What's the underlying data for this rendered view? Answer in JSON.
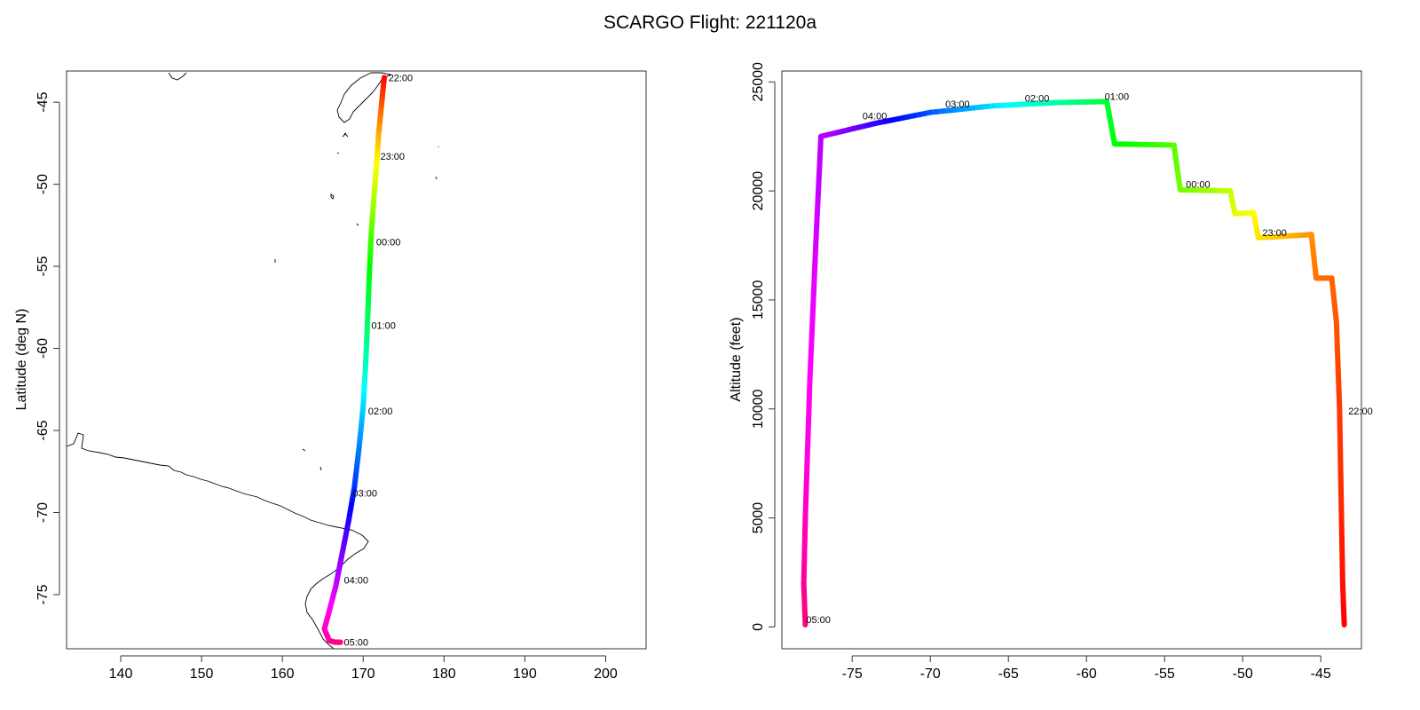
{
  "title": "SCARGO Flight: 221120a",
  "chart_data": [
    {
      "type": "line",
      "ylabel": "Latitude (deg N)",
      "xlabel": "",
      "xlim": [
        133.3,
        205
      ],
      "ylim": [
        -78.3,
        -43.1
      ],
      "xticks": [
        140,
        150,
        160,
        170,
        180,
        190,
        200
      ],
      "yticks": [
        -45,
        -50,
        -55,
        -60,
        -65,
        -70,
        -75
      ],
      "grid": false,
      "color_scale": "time (rainbow: red - yellow - green - cyan - blue - magenta - red)",
      "track": [
        {
          "x": 172.6,
          "y": -43.5,
          "t": 0.0
        },
        {
          "x": 172.3,
          "y": -45.0,
          "t": 0.05
        },
        {
          "x": 171.9,
          "y": -47.0,
          "t": 0.12
        },
        {
          "x": 171.7,
          "y": -48.5,
          "t": 0.17
        },
        {
          "x": 171.3,
          "y": -51.0,
          "t": 0.24
        },
        {
          "x": 171.0,
          "y": -53.0,
          "t": 0.3
        },
        {
          "x": 170.8,
          "y": -55.0,
          "t": 0.36
        },
        {
          "x": 170.5,
          "y": -58.8,
          "t": 0.44
        },
        {
          "x": 170.3,
          "y": -61.0,
          "t": 0.5
        },
        {
          "x": 170.0,
          "y": -63.5,
          "t": 0.57
        },
        {
          "x": 169.5,
          "y": -66.0,
          "t": 0.63
        },
        {
          "x": 168.9,
          "y": -68.5,
          "t": 0.69
        },
        {
          "x": 168.2,
          "y": -70.5,
          "t": 0.75
        },
        {
          "x": 167.4,
          "y": -72.5,
          "t": 0.81
        },
        {
          "x": 166.6,
          "y": -74.5,
          "t": 0.87
        },
        {
          "x": 165.8,
          "y": -76.0,
          "t": 0.92
        },
        {
          "x": 165.2,
          "y": -77.1,
          "t": 0.95
        },
        {
          "x": 165.8,
          "y": -77.8,
          "t": 0.97
        },
        {
          "x": 166.5,
          "y": -77.9,
          "t": 0.99
        },
        {
          "x": 167.2,
          "y": -77.9,
          "t": 1.0
        }
      ],
      "time_labels": [
        {
          "text": "22:00",
          "x": 173.0,
          "y": -43.5
        },
        {
          "text": "23:00",
          "x": 172.0,
          "y": -48.3
        },
        {
          "text": "00:00",
          "x": 171.5,
          "y": -53.5
        },
        {
          "text": "01:00",
          "x": 170.9,
          "y": -58.6
        },
        {
          "text": "02:00",
          "x": 170.5,
          "y": -63.8
        },
        {
          "text": "03:00",
          "x": 168.6,
          "y": -68.8
        },
        {
          "text": "04:00",
          "x": 167.5,
          "y": -74.1
        },
        {
          "text": "05:00",
          "x": 167.5,
          "y": -77.9
        }
      ]
    },
    {
      "type": "line",
      "ylabel": "Altitude (feet)",
      "xlabel": "",
      "xlim": [
        -79.5,
        -42.4
      ],
      "ylim": [
        -1000,
        25500
      ],
      "xticks": [
        -75,
        -70,
        -65,
        -60,
        -55,
        -50,
        -45
      ],
      "yticks": [
        0,
        5000,
        10000,
        15000,
        20000,
        25000
      ],
      "grid": false,
      "track": [
        {
          "x": -43.5,
          "y": 100,
          "t": 0.0
        },
        {
          "x": -43.6,
          "y": 2000,
          "t": 0.01
        },
        {
          "x": -43.7,
          "y": 6000,
          "t": 0.03
        },
        {
          "x": -43.8,
          "y": 10000,
          "t": 0.04
        },
        {
          "x": -44.0,
          "y": 14000,
          "t": 0.06
        },
        {
          "x": -44.3,
          "y": 16000,
          "t": 0.07
        },
        {
          "x": -45.3,
          "y": 16000,
          "t": 0.08
        },
        {
          "x": -45.6,
          "y": 18000,
          "t": 0.1
        },
        {
          "x": -49.0,
          "y": 17850,
          "t": 0.16
        },
        {
          "x": -49.3,
          "y": 19000,
          "t": 0.18
        },
        {
          "x": -50.5,
          "y": 18950,
          "t": 0.2
        },
        {
          "x": -50.8,
          "y": 20000,
          "t": 0.22
        },
        {
          "x": -54.0,
          "y": 20050,
          "t": 0.28
        },
        {
          "x": -54.4,
          "y": 22100,
          "t": 0.3
        },
        {
          "x": -58.2,
          "y": 22150,
          "t": 0.37
        },
        {
          "x": -58.7,
          "y": 24100,
          "t": 0.4
        },
        {
          "x": -62.0,
          "y": 24050,
          "t": 0.48
        },
        {
          "x": -66.0,
          "y": 23900,
          "t": 0.56
        },
        {
          "x": -70.0,
          "y": 23600,
          "t": 0.66
        },
        {
          "x": -73.5,
          "y": 23100,
          "t": 0.76
        },
        {
          "x": -77.0,
          "y": 22500,
          "t": 0.86
        },
        {
          "x": -77.3,
          "y": 18000,
          "t": 0.88
        },
        {
          "x": -77.7,
          "y": 11500,
          "t": 0.91
        },
        {
          "x": -78.0,
          "y": 5000,
          "t": 0.95
        },
        {
          "x": -78.1,
          "y": 2000,
          "t": 0.98
        },
        {
          "x": -78.0,
          "y": 100,
          "t": 1.0
        }
      ],
      "time_labels": [
        {
          "text": "01:00",
          "x": -58.9,
          "y": 24350
        },
        {
          "text": "02:00",
          "x": -64.0,
          "y": 24250
        },
        {
          "text": "03:00",
          "x": -69.1,
          "y": 24000
        },
        {
          "text": "04:00",
          "x": -74.4,
          "y": 23450
        },
        {
          "text": "00:00",
          "x": -53.7,
          "y": 20300
        },
        {
          "text": "23:00",
          "x": -48.8,
          "y": 18100
        },
        {
          "text": "22:00",
          "x": -43.3,
          "y": 9900
        },
        {
          "text": "05:00",
          "x": -78.0,
          "y": 350
        }
      ]
    }
  ]
}
